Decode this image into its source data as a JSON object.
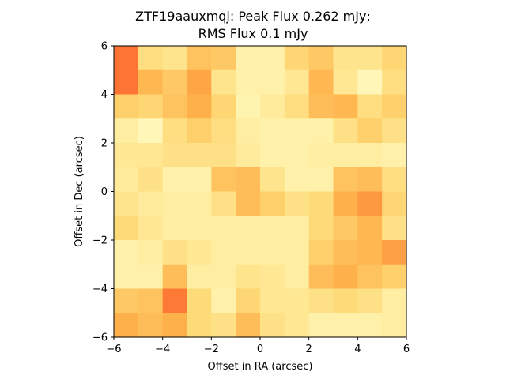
{
  "chart_data": {
    "type": "heatmap",
    "title_lines": [
      "ZTF19aauxmqj: Peak Flux 0.262 mJy;",
      "RMS Flux 0.1 mJy"
    ],
    "xlabel": "Offset in RA (arcsec)",
    "ylabel": "Offset in Dec (arcsec)",
    "xlim": [
      -6,
      6
    ],
    "ylim": [
      -6,
      6
    ],
    "xticks": [
      -6,
      -4,
      -2,
      0,
      2,
      4,
      6
    ],
    "yticks": [
      -6,
      -4,
      -2,
      0,
      2,
      4,
      6
    ],
    "xtick_labels": [
      "−6",
      "−4",
      "−2",
      "0",
      "2",
      "4",
      "6"
    ],
    "ytick_labels": [
      "−6",
      "−4",
      "−2",
      "0",
      "2",
      "4",
      "6"
    ],
    "grid": false,
    "colormap": "YlOrRd",
    "vmin": 0,
    "vmax": 1,
    "note_rows": "rows ordered top (Dec=+6) to bottom (Dec=-6), columns from RA=-6 to RA=+6; values are relative color intensity 0-1 estimated from shading",
    "values": [
      [
        0.55,
        0.22,
        0.18,
        0.32,
        0.3,
        0.1,
        0.1,
        0.26,
        0.3,
        0.18,
        0.18,
        0.26
      ],
      [
        0.55,
        0.36,
        0.3,
        0.42,
        0.18,
        0.1,
        0.1,
        0.16,
        0.36,
        0.16,
        0.06,
        0.22
      ],
      [
        0.28,
        0.26,
        0.32,
        0.38,
        0.26,
        0.08,
        0.14,
        0.22,
        0.34,
        0.36,
        0.22,
        0.28
      ],
      [
        0.12,
        0.06,
        0.22,
        0.28,
        0.22,
        0.12,
        0.1,
        0.1,
        0.1,
        0.2,
        0.28,
        0.2
      ],
      [
        0.16,
        0.16,
        0.2,
        0.2,
        0.2,
        0.14,
        0.1,
        0.1,
        0.12,
        0.12,
        0.12,
        0.1
      ],
      [
        0.14,
        0.2,
        0.1,
        0.1,
        0.32,
        0.34,
        0.18,
        0.1,
        0.1,
        0.32,
        0.34,
        0.22
      ],
      [
        0.18,
        0.14,
        0.12,
        0.12,
        0.2,
        0.34,
        0.28,
        0.2,
        0.24,
        0.38,
        0.46,
        0.26
      ],
      [
        0.24,
        0.16,
        0.12,
        0.12,
        0.12,
        0.12,
        0.12,
        0.12,
        0.24,
        0.3,
        0.36,
        0.2
      ],
      [
        0.1,
        0.12,
        0.2,
        0.16,
        0.12,
        0.12,
        0.12,
        0.12,
        0.28,
        0.34,
        0.36,
        0.44
      ],
      [
        0.1,
        0.1,
        0.34,
        0.12,
        0.12,
        0.18,
        0.16,
        0.12,
        0.34,
        0.38,
        0.32,
        0.28
      ],
      [
        0.3,
        0.32,
        0.54,
        0.24,
        0.1,
        0.26,
        0.16,
        0.16,
        0.2,
        0.24,
        0.2,
        0.12
      ],
      [
        0.38,
        0.34,
        0.38,
        0.24,
        0.2,
        0.34,
        0.2,
        0.16,
        0.1,
        0.1,
        0.1,
        0.12
      ]
    ]
  }
}
